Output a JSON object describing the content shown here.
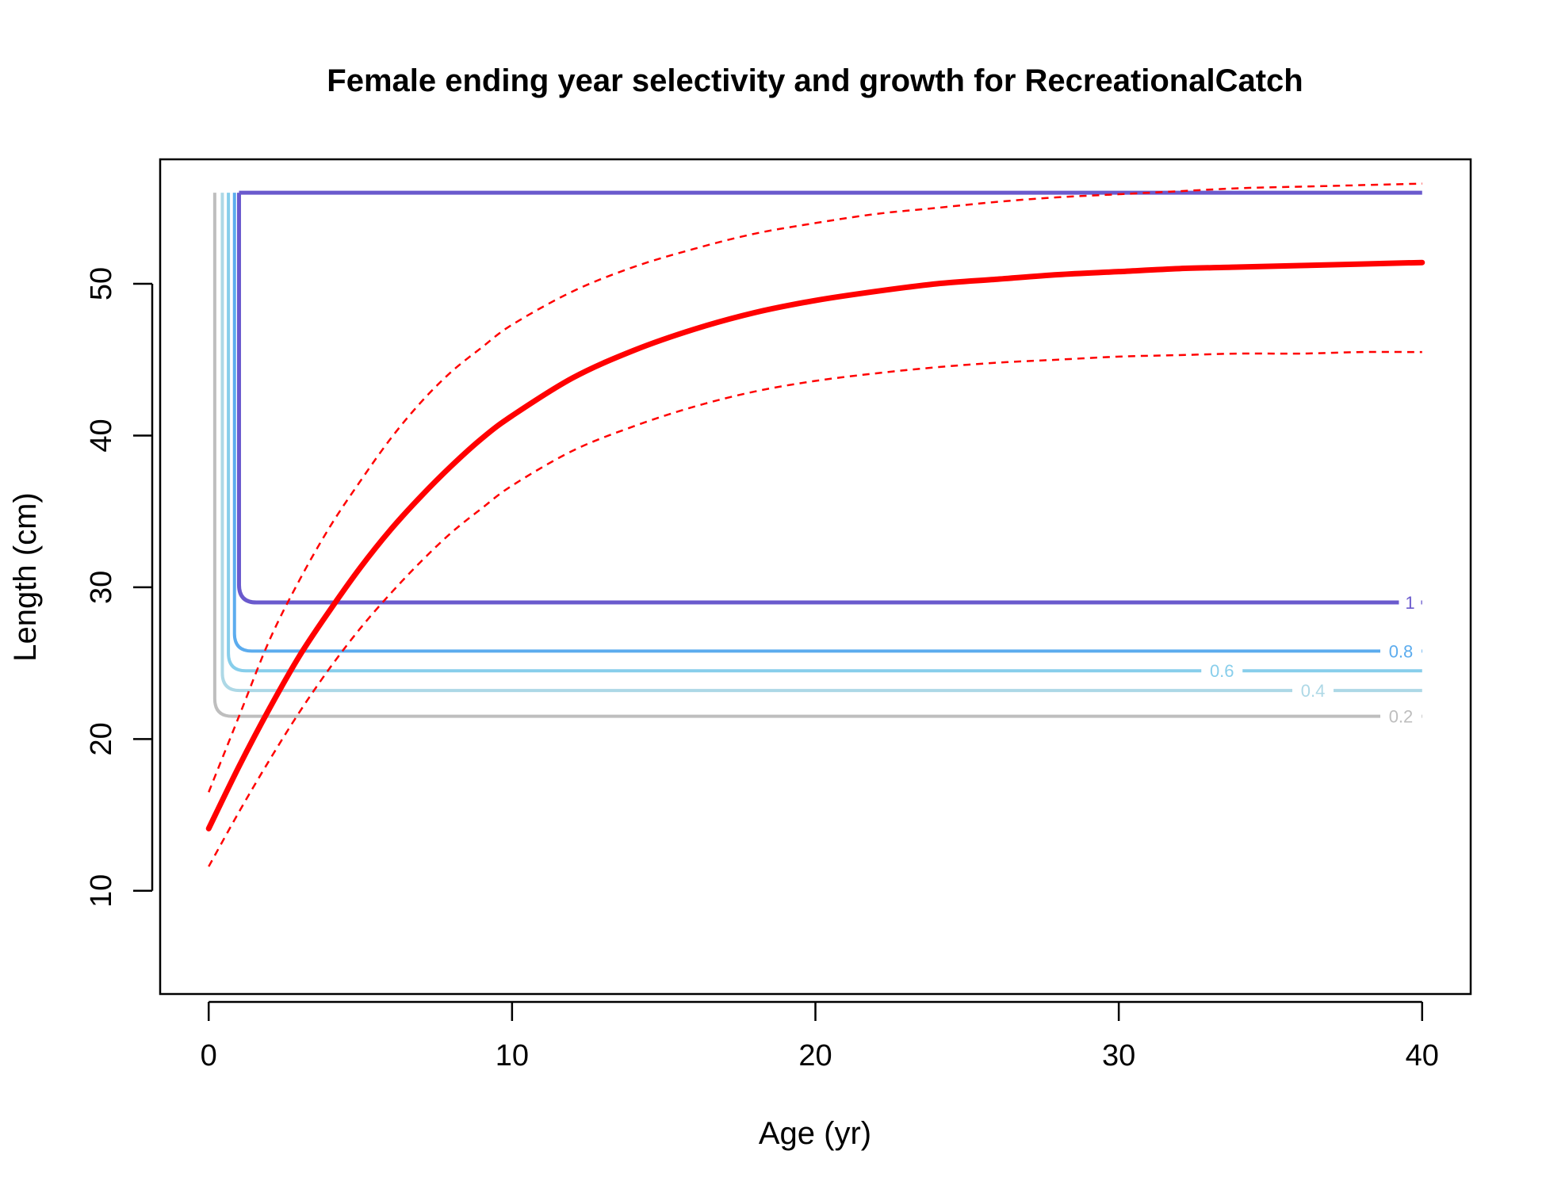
{
  "chart_data": {
    "type": "line",
    "title": "Female ending year selectivity and growth for RecreationalCatch",
    "xlabel": "Age (yr)",
    "ylabel": "Length (cm)",
    "xlim": [
      -1.6,
      41.6
    ],
    "ylim": [
      3.2,
      58.2
    ],
    "xticks": [
      0,
      10,
      20,
      30,
      40
    ],
    "yticks": [
      10,
      20,
      30,
      40,
      50
    ],
    "grid": false,
    "legend": "none",
    "growth": {
      "color": "#ff0000",
      "mean": {
        "x": [
          0,
          1,
          2,
          3,
          4,
          5,
          6,
          7,
          8,
          9,
          10,
          12,
          14,
          16,
          18,
          20,
          22,
          24,
          26,
          28,
          30,
          32,
          34,
          36,
          38,
          40
        ],
        "y": [
          14.1,
          18.2,
          22.0,
          25.5,
          28.5,
          31.3,
          33.8,
          36.0,
          38.0,
          39.8,
          41.3,
          43.8,
          45.6,
          47.0,
          48.1,
          48.9,
          49.5,
          50.0,
          50.3,
          50.6,
          50.8,
          51.0,
          51.1,
          51.2,
          51.3,
          51.4
        ]
      },
      "upper": {
        "x": [
          0,
          1,
          2,
          3,
          4,
          5,
          6,
          7,
          8,
          9,
          10,
          12,
          14,
          16,
          18,
          20,
          22,
          24,
          26,
          28,
          30,
          32,
          34,
          36,
          38,
          40
        ],
        "y": [
          16.5,
          21.5,
          26.5,
          30.5,
          34.0,
          37.0,
          39.8,
          42.2,
          44.2,
          45.8,
          47.3,
          49.5,
          51.1,
          52.3,
          53.3,
          54.0,
          54.6,
          55.0,
          55.4,
          55.7,
          55.9,
          56.1,
          56.3,
          56.4,
          56.5,
          56.6
        ]
      },
      "lower": {
        "x": [
          0,
          1,
          2,
          3,
          4,
          5,
          6,
          7,
          8,
          9,
          10,
          12,
          14,
          16,
          18,
          20,
          22,
          24,
          26,
          28,
          30,
          32,
          34,
          36,
          38,
          40
        ],
        "y": [
          11.6,
          15.2,
          18.6,
          21.8,
          24.7,
          27.3,
          29.6,
          31.7,
          33.6,
          35.2,
          36.7,
          39.0,
          40.6,
          41.9,
          42.9,
          43.6,
          44.1,
          44.5,
          44.8,
          45.0,
          45.2,
          45.3,
          45.4,
          45.4,
          45.5,
          45.5
        ]
      }
    },
    "selectivity_contours": [
      {
        "label": "0.2",
        "color": "#bebebe",
        "x_vertical": 0.2,
        "y_low": 21.5,
        "y_top": 56.0,
        "label_x": 39.3
      },
      {
        "label": "0.4",
        "color": "#add8e6",
        "x_vertical": 0.45,
        "y_low": 23.2,
        "y_top": 56.0,
        "label_x": 36.4
      },
      {
        "label": "0.6",
        "color": "#87ceeb",
        "x_vertical": 0.65,
        "y_low": 24.5,
        "y_top": 56.0,
        "label_x": 33.4
      },
      {
        "label": "0.8",
        "color": "#5cacee",
        "x_vertical": 0.85,
        "y_low": 25.8,
        "y_top": 56.0,
        "label_x": 39.3
      },
      {
        "label": "1",
        "color": "#6a5acd",
        "x_vertical": 1.0,
        "y_low": 29.0,
        "y_top": 56.0,
        "label_x": 39.6
      }
    ]
  }
}
